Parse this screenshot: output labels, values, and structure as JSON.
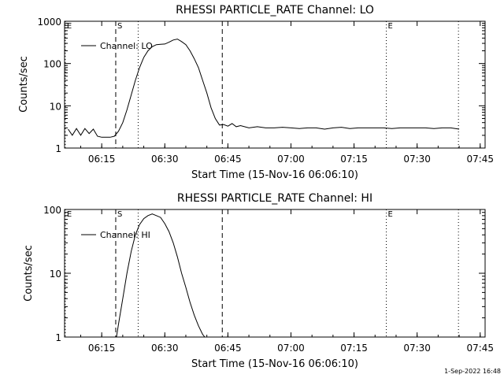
{
  "footer_timestamp": "1-Sep-2022 16:48",
  "colors": {
    "background": "#ffffff",
    "foreground": "#000000"
  },
  "chart_data": [
    {
      "type": "line",
      "title": "RHESSI PARTICLE_RATE Channel: LO",
      "xlabel": "Start Time (15-Nov-16 06:06:10)",
      "ylabel": "Counts/sec",
      "yscale": "log",
      "xlim": [
        "06:06:10",
        "07:46:10"
      ],
      "ylim": [
        1,
        1000
      ],
      "x_tick_labels": [
        "06:15",
        "06:30",
        "06:45",
        "07:00",
        "07:15",
        "07:30",
        "07:45"
      ],
      "y_tick_labels": [
        "1",
        "10",
        "100",
        "1000"
      ],
      "legend": [
        "Channel: LO"
      ],
      "legend_position": "top-left",
      "markers": [
        {
          "label": "E",
          "time": "06:06:20",
          "style": "dotted"
        },
        {
          "label": "S",
          "time": "06:18:20",
          "style": "dashed"
        },
        {
          "label": "",
          "time": "06:23:40",
          "style": "dotted"
        },
        {
          "label": "",
          "time": "06:43:40",
          "style": "dashed"
        },
        {
          "label": "E",
          "time": "07:22:40",
          "style": "dotted"
        },
        {
          "label": "",
          "time": "07:39:50",
          "style": "dotted"
        }
      ],
      "series": [
        {
          "x": [
            "06:07:00",
            "06:08:00",
            "06:09:00",
            "06:10:00",
            "06:11:00",
            "06:12:00",
            "06:13:00",
            "06:14:00",
            "06:15:00",
            "06:16:00",
            "06:17:00",
            "06:18:00",
            "06:19:00",
            "06:20:00",
            "06:21:00",
            "06:22:00",
            "06:23:00",
            "06:24:00",
            "06:25:00",
            "06:26:00",
            "06:27:00",
            "06:28:00",
            "06:29:00",
            "06:30:00",
            "06:31:00",
            "06:32:00",
            "06:33:00",
            "06:34:00",
            "06:35:00",
            "06:36:00",
            "06:37:00",
            "06:38:00",
            "06:39:00",
            "06:40:00",
            "06:41:00",
            "06:42:00",
            "06:43:00",
            "06:44:00",
            "06:45:00",
            "06:46:00",
            "06:47:00",
            "06:48:00",
            "06:50:00",
            "06:52:00",
            "06:54:00",
            "06:56:00",
            "06:58:00",
            "07:00:00",
            "07:02:00",
            "07:04:00",
            "07:06:00",
            "07:08:00",
            "07:10:00",
            "07:12:00",
            "07:14:00",
            "07:16:00",
            "07:18:00",
            "07:20:00",
            "07:22:00",
            "07:24:00",
            "07:26:00",
            "07:28:00",
            "07:30:00",
            "07:32:00",
            "07:34:00",
            "07:36:00",
            "07:38:00",
            "07:40:00"
          ],
          "values": [
            2.8,
            2.0,
            2.9,
            2.0,
            2.9,
            2.2,
            2.8,
            1.9,
            1.8,
            1.8,
            1.8,
            1.9,
            2.5,
            4.0,
            8.0,
            18,
            40,
            80,
            140,
            200,
            250,
            280,
            285,
            290,
            320,
            360,
            380,
            330,
            280,
            200,
            130,
            80,
            40,
            20,
            9,
            5,
            3.5,
            3.6,
            3.3,
            3.8,
            3.2,
            3.4,
            3.0,
            3.2,
            3.0,
            3.0,
            3.1,
            3.0,
            2.9,
            3.0,
            3.0,
            2.8,
            3.0,
            3.1,
            2.9,
            3.0,
            3.0,
            3.0,
            3.0,
            2.9,
            3.0,
            3.0,
            3.0,
            3.0,
            2.9,
            3.0,
            3.0,
            2.8
          ]
        }
      ]
    },
    {
      "type": "line",
      "title": "RHESSI PARTICLE_RATE Channel: HI",
      "xlabel": "Start Time (15-Nov-16 06:06:10)",
      "ylabel": "Counts/sec",
      "yscale": "log",
      "xlim": [
        "06:06:10",
        "07:46:10"
      ],
      "ylim": [
        1,
        100
      ],
      "x_tick_labels": [
        "06:15",
        "06:30",
        "06:45",
        "07:00",
        "07:15",
        "07:30",
        "07:45"
      ],
      "y_tick_labels": [
        "1",
        "10",
        "100"
      ],
      "legend": [
        "Channel: HI"
      ],
      "legend_position": "top-left",
      "markers": [
        {
          "label": "E",
          "time": "06:06:20",
          "style": "dotted"
        },
        {
          "label": "S",
          "time": "06:18:20",
          "style": "dashed"
        },
        {
          "label": "",
          "time": "06:23:40",
          "style": "dotted"
        },
        {
          "label": "",
          "time": "06:43:40",
          "style": "dashed"
        },
        {
          "label": "E",
          "time": "07:22:40",
          "style": "dotted"
        },
        {
          "label": "",
          "time": "07:39:50",
          "style": "dotted"
        }
      ],
      "series": [
        {
          "x": [
            "06:18:30",
            "06:19:00",
            "06:20:00",
            "06:21:00",
            "06:22:00",
            "06:23:00",
            "06:24:00",
            "06:25:00",
            "06:26:00",
            "06:27:00",
            "06:28:00",
            "06:29:00",
            "06:30:00",
            "06:31:00",
            "06:32:00",
            "06:33:00",
            "06:34:00",
            "06:35:00",
            "06:36:00",
            "06:37:00",
            "06:38:00",
            "06:39:00",
            "06:39:30"
          ],
          "values": [
            1.0,
            1.6,
            4.0,
            10,
            22,
            40,
            58,
            72,
            80,
            85,
            80,
            75,
            60,
            45,
            30,
            18,
            10,
            6,
            3.5,
            2.2,
            1.5,
            1.1,
            1.0
          ]
        }
      ]
    }
  ]
}
